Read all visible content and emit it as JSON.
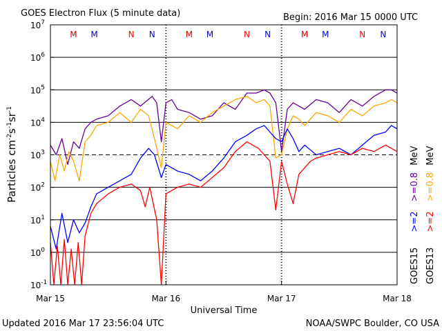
{
  "header": {
    "title": "GOES Electron Flux (5 minute data)",
    "begin": "Begin: 2016 Mar 15 0000 UTC"
  },
  "footer": {
    "updated": "Updated 2016 Mar 17 23:56:04 UTC",
    "source": "NOAA/SWPC Boulder, CO USA"
  },
  "colors": {
    "goes15_gt2": "#0000ff",
    "goes15_gt08": "#660099",
    "goes13_gt2": "#ff0000",
    "goes13_gt08": "#ffa500",
    "marker_m": "#cc0000",
    "marker_n_red": "#ff0000",
    "marker_n_blue": "#0000cc"
  },
  "chart_data": {
    "type": "line",
    "title": "GOES Electron Flux (5 minute data)",
    "xlabel": "Universal Time",
    "ylabel_parts": {
      "base": "Particles cm",
      "e1": "-2",
      "mid1": "s",
      "e2": "-1",
      "mid2": "sr",
      "e3": "-1"
    },
    "x_ticks": [
      "Mar 15",
      "Mar 16",
      "Mar 17",
      "Mar 18"
    ],
    "xlim_days": [
      0,
      3
    ],
    "y_scale": "log",
    "y_tick_labels": [
      {
        "base": "10",
        "exp": "7"
      },
      {
        "base": "10",
        "exp": "6"
      },
      {
        "base": "10",
        "exp": "5"
      },
      {
        "base": "10",
        "exp": "4"
      },
      {
        "base": "10",
        "exp": "3"
      },
      {
        "base": "10",
        "exp": "2"
      },
      {
        "base": "10",
        "exp": "1"
      },
      {
        "base": "10",
        "exp": "0"
      },
      {
        "base": "10",
        "exp": "-1"
      }
    ],
    "ylim_log10": [
      -1,
      7
    ],
    "threshold_log10": 3,
    "right_labels": {
      "goes15": "GOES15",
      "goes13": "GOES13",
      "gt2": ">=2",
      "gt08": ">=0.8",
      "mev": "MeV"
    },
    "markers": [
      {
        "label": "M",
        "x": 0.2,
        "sat": "m"
      },
      {
        "label": "M",
        "x": 0.38,
        "sat": "m2"
      },
      {
        "label": "N",
        "x": 0.7,
        "sat": "n_red"
      },
      {
        "label": "N",
        "x": 0.88,
        "sat": "n_blue"
      },
      {
        "label": "M",
        "x": 1.2,
        "sat": "m"
      },
      {
        "label": "M",
        "x": 1.38,
        "sat": "m2"
      },
      {
        "label": "N",
        "x": 1.7,
        "sat": "n_red"
      },
      {
        "label": "N",
        "x": 1.88,
        "sat": "n_blue"
      },
      {
        "label": "M",
        "x": 2.2,
        "sat": "m"
      },
      {
        "label": "M",
        "x": 2.38,
        "sat": "m2"
      },
      {
        "label": "N",
        "x": 2.7,
        "sat": "n_red"
      },
      {
        "label": "N",
        "x": 2.88,
        "sat": "n_blue"
      }
    ],
    "series": [
      {
        "key": "goes15_gt08",
        "x": [
          0,
          0.05,
          0.1,
          0.15,
          0.2,
          0.25,
          0.3,
          0.35,
          0.4,
          0.5,
          0.6,
          0.7,
          0.78,
          0.88,
          0.92,
          0.96,
          1.0,
          1.05,
          1.1,
          1.2,
          1.3,
          1.4,
          1.5,
          1.6,
          1.7,
          1.78,
          1.85,
          1.9,
          1.95,
          2.0,
          2.05,
          2.1,
          2.15,
          2.2,
          2.3,
          2.4,
          2.5,
          2.6,
          2.7,
          2.8,
          2.9,
          2.95,
          3.0
        ],
        "log10": [
          3.3,
          3.0,
          3.5,
          2.7,
          3.4,
          3.2,
          3.8,
          4.0,
          4.1,
          4.2,
          4.5,
          4.7,
          4.5,
          4.8,
          4.6,
          3.4,
          4.6,
          4.7,
          4.4,
          4.3,
          4.1,
          4.2,
          4.6,
          4.4,
          4.9,
          4.9,
          5.0,
          4.9,
          4.6,
          3.1,
          4.4,
          4.6,
          4.5,
          4.4,
          4.7,
          4.6,
          4.3,
          4.7,
          4.5,
          4.8,
          5.0,
          5.0,
          4.9
        ]
      },
      {
        "key": "goes13_gt08",
        "x": [
          0,
          0.04,
          0.08,
          0.12,
          0.16,
          0.2,
          0.25,
          0.3,
          0.35,
          0.4,
          0.5,
          0.6,
          0.7,
          0.78,
          0.85,
          0.9,
          0.96,
          1.0,
          1.05,
          1.1,
          1.2,
          1.3,
          1.4,
          1.5,
          1.6,
          1.7,
          1.78,
          1.85,
          1.9,
          1.95,
          2.0,
          2.05,
          2.1,
          2.15,
          2.2,
          2.3,
          2.4,
          2.5,
          2.6,
          2.7,
          2.8,
          2.9,
          2.95,
          3.0
        ],
        "log10": [
          2.8,
          2.2,
          3.0,
          2.5,
          3.1,
          2.8,
          2.2,
          3.4,
          3.6,
          3.9,
          4.0,
          4.3,
          4.0,
          4.4,
          4.2,
          3.5,
          2.6,
          4.0,
          3.9,
          3.8,
          4.2,
          4.0,
          4.3,
          4.5,
          4.7,
          4.8,
          4.6,
          4.7,
          4.5,
          2.9,
          3.0,
          3.8,
          4.2,
          4.1,
          3.9,
          4.3,
          4.2,
          4.0,
          4.4,
          4.2,
          4.5,
          4.6,
          4.7,
          4.6
        ]
      },
      {
        "key": "goes15_gt2",
        "x": [
          0,
          0.05,
          0.1,
          0.15,
          0.2,
          0.25,
          0.3,
          0.35,
          0.4,
          0.5,
          0.6,
          0.7,
          0.78,
          0.85,
          0.9,
          0.96,
          1.0,
          1.05,
          1.1,
          1.2,
          1.3,
          1.4,
          1.5,
          1.6,
          1.7,
          1.78,
          1.85,
          1.9,
          1.95,
          2.0,
          2.05,
          2.1,
          2.15,
          2.2,
          2.3,
          2.4,
          2.5,
          2.6,
          2.7,
          2.8,
          2.9,
          2.95,
          3.0
        ],
        "log10": [
          0.8,
          0.1,
          1.2,
          0.3,
          1.0,
          0.6,
          0.9,
          1.4,
          1.8,
          2.0,
          2.2,
          2.4,
          2.9,
          3.2,
          3.0,
          2.3,
          2.7,
          2.6,
          2.5,
          2.4,
          2.2,
          2.5,
          2.9,
          3.4,
          3.6,
          3.8,
          3.9,
          3.7,
          3.5,
          3.4,
          3.8,
          3.5,
          3.1,
          3.3,
          3.0,
          3.1,
          3.2,
          3.0,
          3.3,
          3.6,
          3.7,
          3.9,
          3.8
        ]
      },
      {
        "key": "goes13_gt2",
        "x": [
          0,
          0.03,
          0.06,
          0.09,
          0.12,
          0.15,
          0.18,
          0.21,
          0.24,
          0.27,
          0.3,
          0.35,
          0.4,
          0.5,
          0.6,
          0.7,
          0.78,
          0.82,
          0.86,
          0.92,
          0.96,
          1.0,
          1.05,
          1.1,
          1.2,
          1.3,
          1.4,
          1.5,
          1.6,
          1.7,
          1.75,
          1.8,
          1.85,
          1.9,
          1.95,
          2.0,
          2.05,
          2.1,
          2.15,
          2.2,
          2.25,
          2.3,
          2.4,
          2.5,
          2.6,
          2.7,
          2.8,
          2.9,
          2.95,
          3.0
        ],
        "log10": [
          0.3,
          -1.0,
          0.2,
          -1.0,
          0.4,
          -1.0,
          0.1,
          -1.0,
          0.3,
          -1.0,
          0.5,
          1.2,
          1.5,
          1.8,
          2.0,
          2.1,
          1.9,
          1.4,
          2.0,
          1.0,
          -1.0,
          1.8,
          1.9,
          2.0,
          2.1,
          2.0,
          2.3,
          2.6,
          3.1,
          3.4,
          3.3,
          3.2,
          3.0,
          2.8,
          1.3,
          2.8,
          2.1,
          1.5,
          2.4,
          2.6,
          2.8,
          2.9,
          3.0,
          3.1,
          3.0,
          3.2,
          3.1,
          3.3,
          3.2,
          3.1
        ]
      }
    ]
  }
}
